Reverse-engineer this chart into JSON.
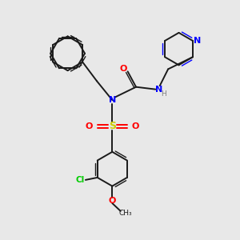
{
  "bg_color": "#e8e8e8",
  "bond_color": "#1a1a1a",
  "N_color": "#0000ff",
  "O_color": "#ff0000",
  "S_color": "#cccc00",
  "Cl_color": "#00cc00",
  "H_color": "#808080",
  "fig_w": 3.0,
  "fig_h": 3.0,
  "dpi": 100,
  "xlim": [
    0,
    10
  ],
  "ylim": [
    0,
    10
  ]
}
